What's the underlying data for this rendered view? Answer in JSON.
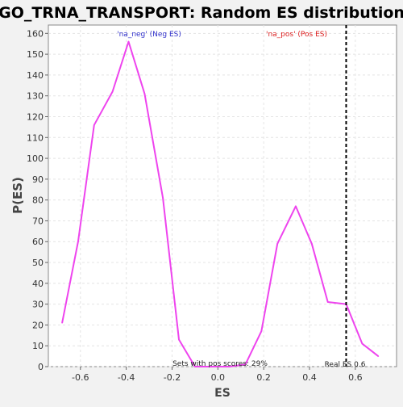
{
  "chart_data": {
    "type": "line",
    "title": "GO_TRNA_TRANSPORT: Random ES distribution",
    "xlabel": "ES",
    "ylabel": "P(ES)",
    "xlim": [
      -0.74,
      0.78
    ],
    "ylim": [
      0,
      164
    ],
    "x_ticks": [
      -0.6,
      -0.4,
      -0.2,
      0.0,
      0.2,
      0.4,
      0.6
    ],
    "x_tick_labels": [
      "-0.6",
      "-0.4",
      "-0.2",
      "0.0",
      "0.2",
      "0.4",
      "0.6"
    ],
    "y_ticks": [
      0,
      10,
      20,
      30,
      40,
      50,
      60,
      70,
      80,
      90,
      100,
      110,
      120,
      130,
      140,
      150,
      160
    ],
    "grid": true,
    "legend": [
      {
        "label": "'na_neg' (Neg ES)",
        "color": "#3333cc",
        "placement": "top-left"
      },
      {
        "label": "'na_pos' (Pos ES)",
        "color": "#dd2222",
        "placement": "top-right"
      }
    ],
    "series": [
      {
        "color": "#ee44ee",
        "x": [
          -0.68,
          -0.61,
          -0.54,
          -0.46,
          -0.39,
          -0.32,
          -0.24,
          -0.17,
          -0.1,
          -0.03,
          0.05,
          0.12,
          0.19,
          0.26,
          0.34,
          0.41,
          0.48,
          0.56,
          0.63,
          0.7
        ],
        "y": [
          21,
          60,
          116,
          132,
          156,
          131,
          81,
          13,
          0,
          0,
          0,
          1,
          17,
          59,
          77,
          59,
          31,
          30,
          11,
          5
        ]
      }
    ],
    "reference_line": {
      "x": 0.56,
      "label": "Real ES 0.6",
      "style": "dashed",
      "color": "#000000"
    },
    "annotation": "Sets with pos scores: 29%"
  }
}
